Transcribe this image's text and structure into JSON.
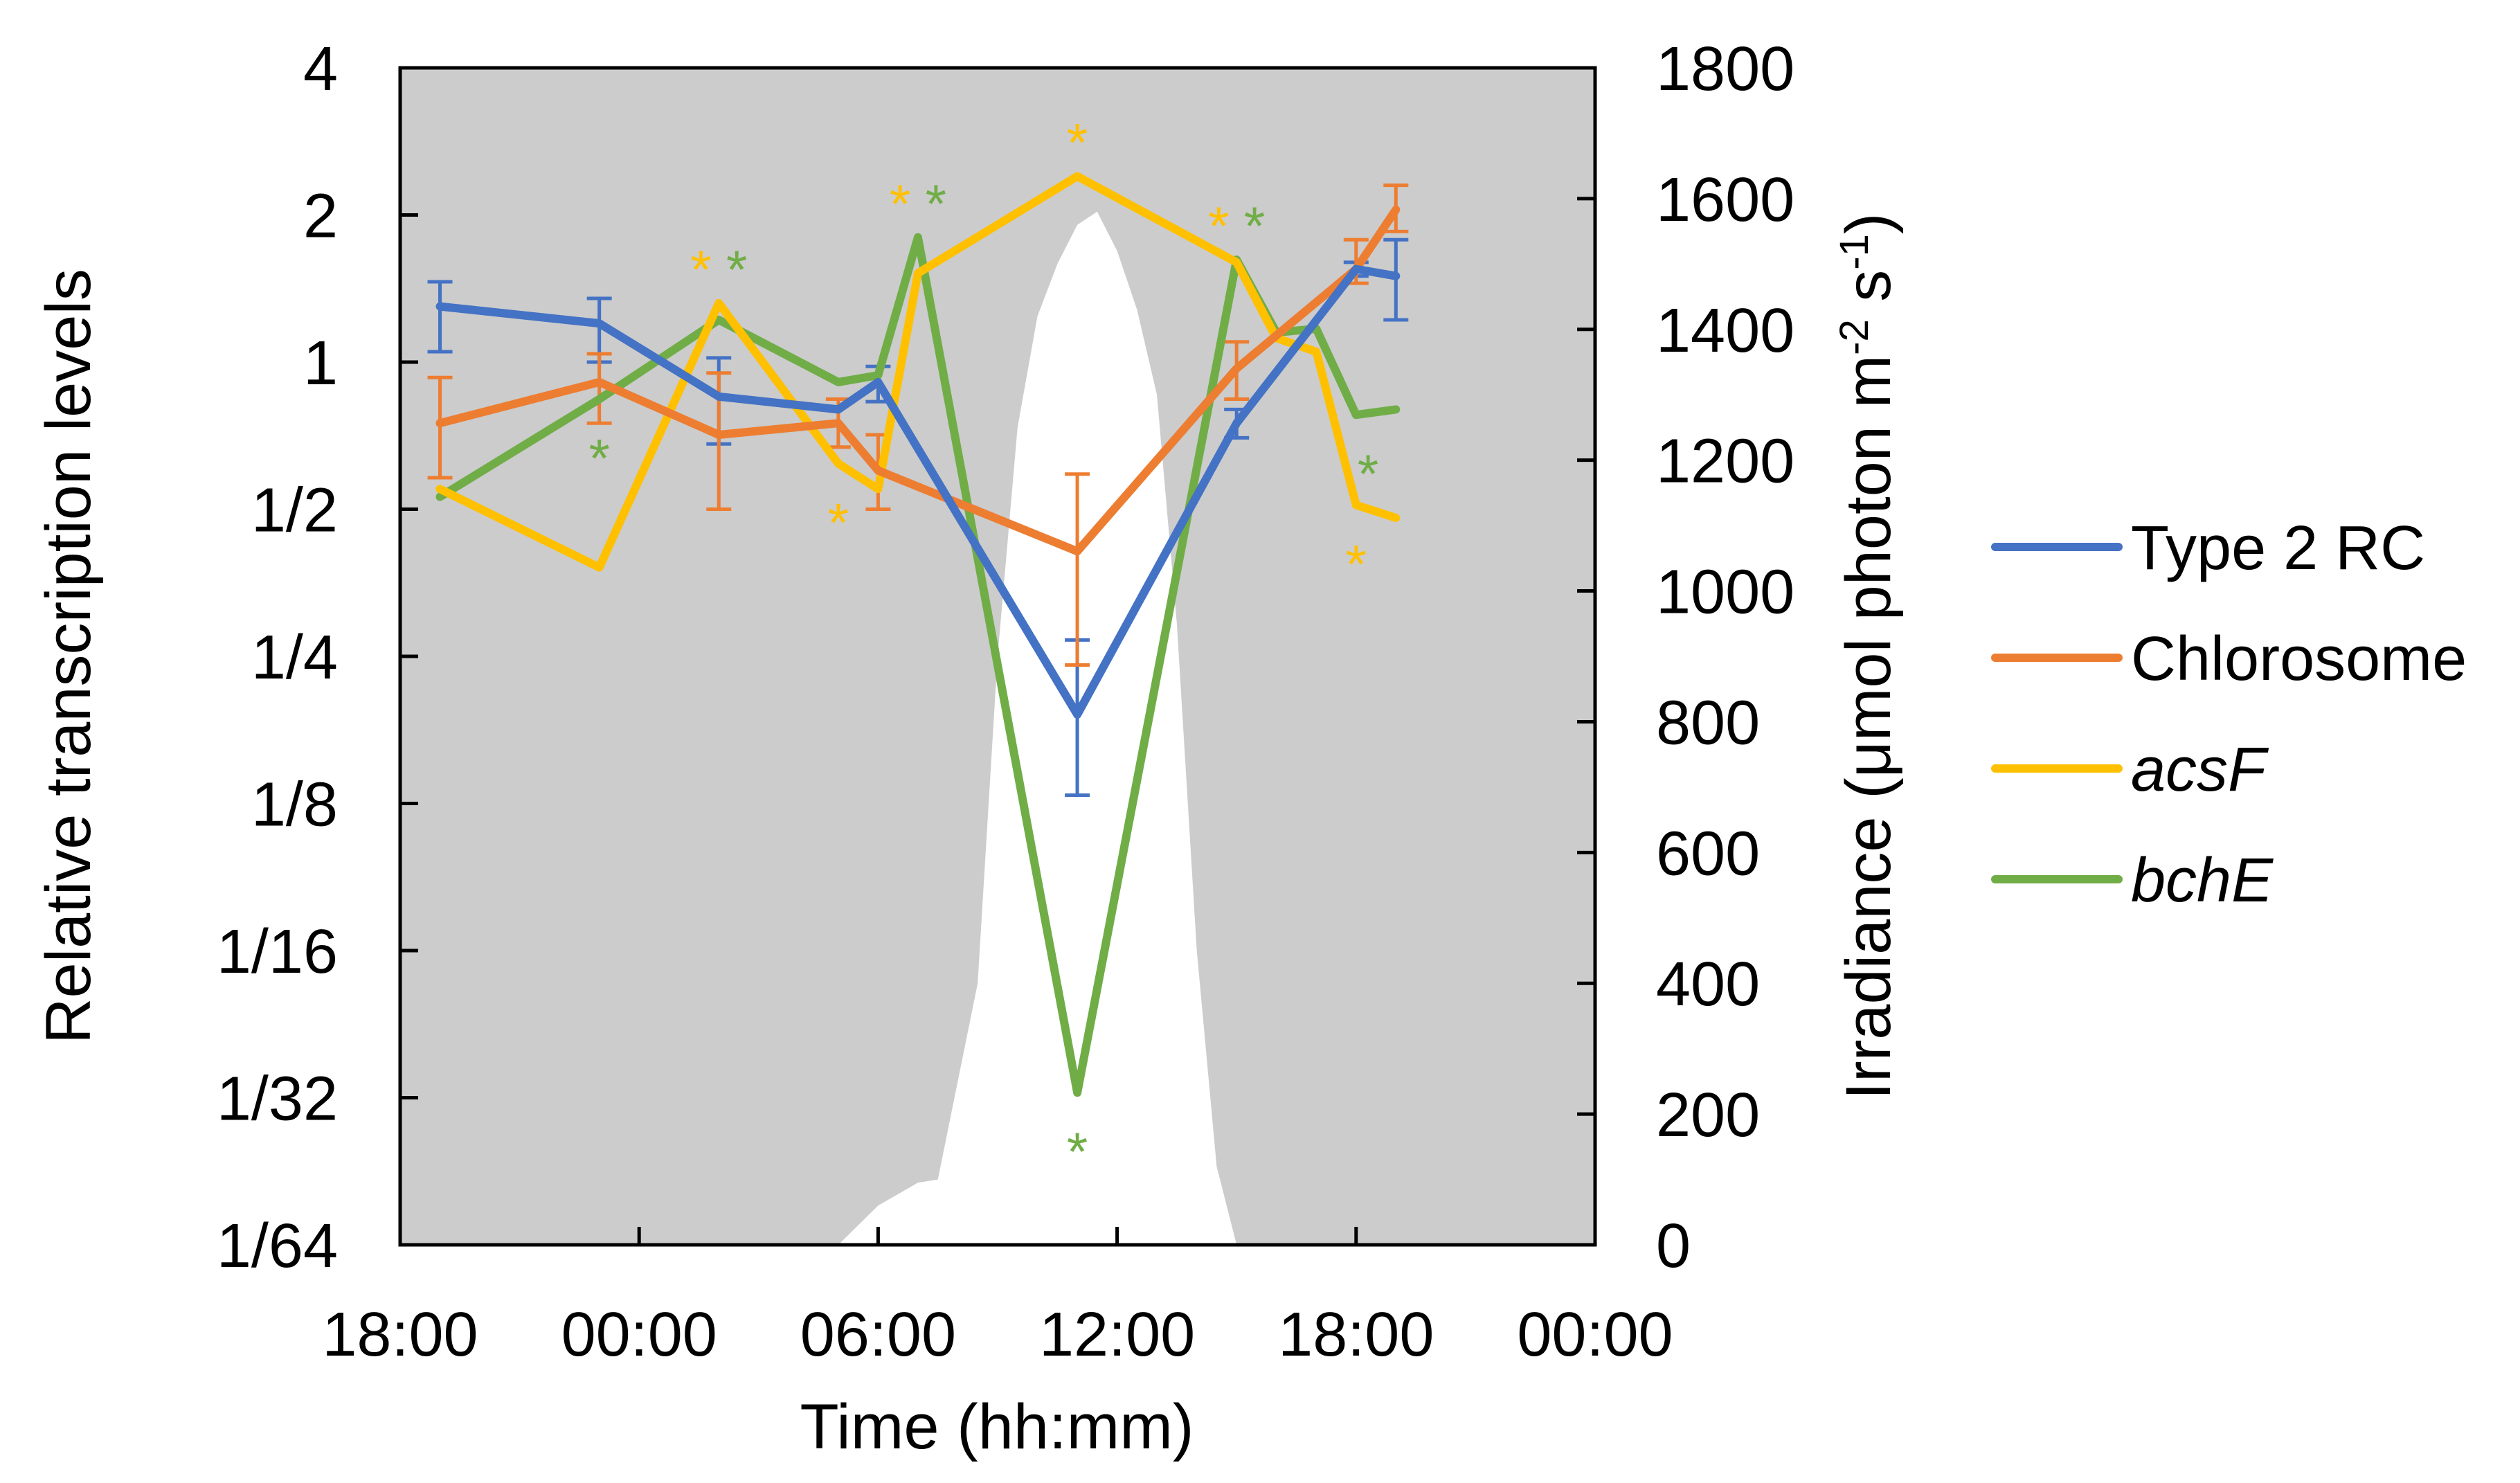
{
  "chart_data": {
    "type": "line",
    "xlabel": "Time (hh:mm)",
    "ylabel": "Relative transcription levels",
    "y2label_main": "Irradiance (μmol photon m",
    "y2label_sup1": "-2",
    "y2label_mid": " s",
    "y2label_sup2": "-1",
    "y2label_end": ")",
    "x_ticks": [
      "18:00",
      "00:00",
      "06:00",
      "12:00",
      "18:00",
      "00:00"
    ],
    "x_range_hours": [
      18,
      48
    ],
    "y_ticks": [
      "4",
      "2",
      "1",
      "1/2",
      "1/4",
      "1/8",
      "1/16",
      "1/32",
      "1/64"
    ],
    "y_range_log2": [
      -6,
      2
    ],
    "y2_ticks": [
      "1800",
      "1600",
      "1400",
      "1200",
      "1000",
      "800",
      "600",
      "400",
      "200",
      "0"
    ],
    "y2_range": [
      0,
      1800
    ],
    "grid": false,
    "legend_position": "right",
    "plot_background": "#cccccc",
    "series": [
      {
        "name": "Type 2 RC",
        "color": "#4472c4",
        "italic": false,
        "x": [
          19,
          23,
          26,
          29,
          30,
          35,
          39,
          42,
          43
        ],
        "y": [
          1.3,
          1.2,
          0.85,
          0.8,
          0.91,
          0.19,
          0.75,
          1.55,
          1.5
        ],
        "err_lo": [
          1.05,
          1.0,
          0.68,
          null,
          0.83,
          0.13,
          0.7,
          1.5,
          1.22
        ],
        "err_hi": [
          1.46,
          1.35,
          1.02,
          null,
          0.98,
          0.27,
          0.8,
          1.6,
          1.78
        ]
      },
      {
        "name": "Chlorosome",
        "color": "#ed7d31",
        "italic": false,
        "x": [
          19,
          23,
          26,
          29,
          30,
          35,
          39,
          42,
          43
        ],
        "y": [
          0.75,
          0.91,
          0.71,
          0.75,
          0.6,
          0.41,
          0.97,
          1.55,
          2.05
        ],
        "err_lo": [
          0.58,
          0.75,
          0.5,
          0.67,
          0.5,
          0.24,
          0.84,
          1.45,
          1.85
        ],
        "err_hi": [
          0.93,
          1.04,
          0.95,
          0.84,
          0.71,
          0.59,
          1.1,
          1.78,
          2.3
        ]
      },
      {
        "name": "acsF",
        "color": "#ffc000",
        "italic": true,
        "x": [
          19,
          23,
          26,
          29,
          30,
          31,
          35,
          39,
          40,
          41,
          42,
          43
        ],
        "y": [
          0.55,
          0.38,
          1.32,
          0.62,
          0.55,
          1.52,
          2.4,
          1.6,
          1.12,
          1.05,
          0.51,
          0.48
        ]
      },
      {
        "name": "bchE",
        "color": "#70ad47",
        "italic": true,
        "x": [
          19,
          23,
          26,
          29,
          30,
          31,
          35,
          39,
          40,
          41,
          42,
          43
        ],
        "y": [
          0.53,
          0.84,
          1.22,
          0.91,
          0.94,
          1.8,
          0.032,
          1.62,
          1.15,
          1.17,
          0.78,
          0.8
        ]
      }
    ],
    "asterisks": [
      {
        "x": 23,
        "y_side": "below",
        "ref_y": 0.84,
        "color": "#70ad47"
      },
      {
        "x": 26,
        "y_side": "above",
        "ref_y": 1.32,
        "color": "#ffc000",
        "offset": -0.45
      },
      {
        "x": 26,
        "y_side": "above",
        "ref_y": 1.32,
        "color": "#70ad47",
        "offset": 0.45
      },
      {
        "x": 29,
        "y_side": "below",
        "ref_y": 0.62,
        "color": "#ffc000"
      },
      {
        "x": 31,
        "y_side": "above",
        "ref_y": 1.8,
        "color": "#ffc000",
        "offset": -0.45
      },
      {
        "x": 31,
        "y_side": "above",
        "ref_y": 1.8,
        "color": "#70ad47",
        "offset": 0.45
      },
      {
        "x": 35,
        "y_side": "above",
        "ref_y": 2.4,
        "color": "#ffc000"
      },
      {
        "x": 35,
        "y_side": "below",
        "ref_y": 0.032,
        "color": "#70ad47"
      },
      {
        "x": 39,
        "y_side": "above",
        "ref_y": 1.62,
        "color": "#ffc000",
        "offset": -0.45
      },
      {
        "x": 39,
        "y_side": "above",
        "ref_y": 1.62,
        "color": "#70ad47",
        "offset": 0.45
      },
      {
        "x": 42,
        "y_side": "below",
        "ref_y": 0.51,
        "color": "#ffc000"
      },
      {
        "x": 42,
        "y_side": "below",
        "ref_y": 0.78,
        "color": "#70ad47",
        "offset": 0.3
      }
    ],
    "irradiance": {
      "color": "#ffffff",
      "x": [
        18,
        29,
        30,
        31,
        31.5,
        32.5,
        33,
        33.5,
        34,
        34.5,
        35,
        35.5,
        36,
        36.5,
        37,
        37.5,
        38,
        38.5,
        39,
        48
      ],
      "y": [
        0,
        0,
        60,
        95,
        100,
        400,
        900,
        1250,
        1420,
        1500,
        1560,
        1580,
        1520,
        1430,
        1300,
        950,
        450,
        120,
        0,
        0
      ]
    }
  }
}
